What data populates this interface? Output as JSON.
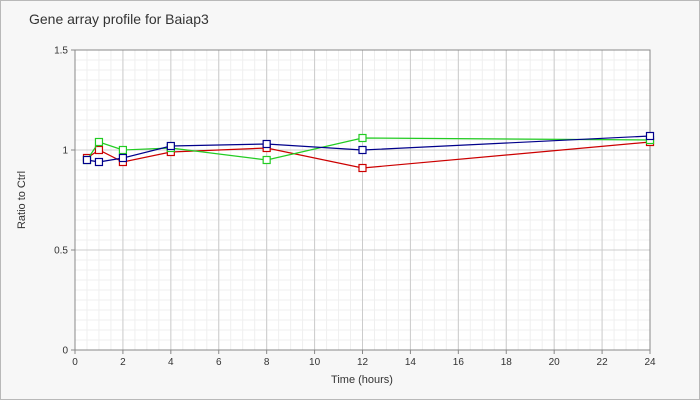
{
  "chart_data": {
    "type": "line",
    "title": "Gene array profile for Baiap3",
    "xlabel": "Time (hours)",
    "ylabel": "Ratio to Ctrl",
    "xlim": [
      0,
      24
    ],
    "ylim": [
      0,
      1.5
    ],
    "xticks": [
      "0",
      "2",
      "4",
      "6",
      "8",
      "10",
      "12",
      "14",
      "16",
      "18",
      "20",
      "22",
      "24"
    ],
    "yticks": [
      "0",
      "0.5",
      "1",
      "1.5"
    ],
    "grid": true,
    "x": [
      0.5,
      1,
      2,
      4,
      8,
      12,
      24
    ],
    "series": [
      {
        "color": "#cc0000",
        "values": [
          0.96,
          1.0,
          0.94,
          0.99,
          1.01,
          0.91,
          1.04
        ]
      },
      {
        "color": "#22cc22",
        "values": [
          0.95,
          1.04,
          1.0,
          1.01,
          0.95,
          1.06,
          1.05
        ]
      },
      {
        "color": "#00008b",
        "values": [
          0.95,
          0.94,
          0.96,
          1.02,
          1.03,
          1.0,
          1.07
        ]
      }
    ]
  }
}
